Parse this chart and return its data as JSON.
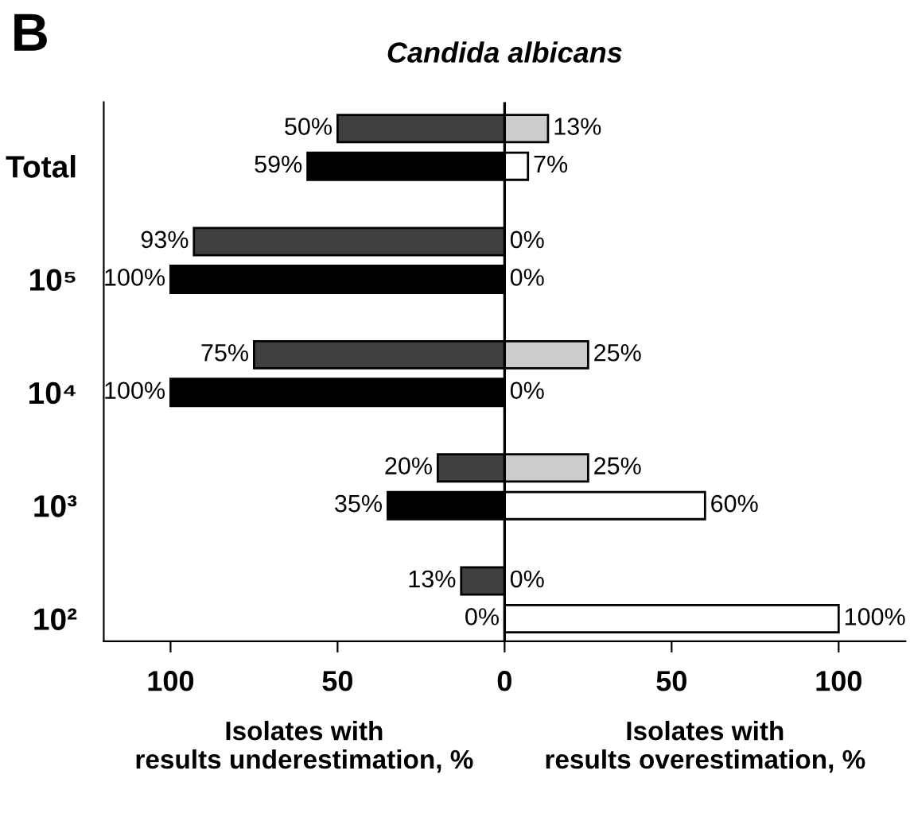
{
  "chart_data": {
    "type": "bar",
    "orientation": "horizontal",
    "title": "Candida albicans",
    "categories": [
      null,
      "Total",
      null,
      null,
      "10⁵",
      null,
      null,
      "10⁴",
      null,
      null,
      "10³",
      null,
      null,
      "10²"
    ],
    "series": [
      {
        "values": [
          50,
          59,
          null,
          93,
          100,
          null,
          75,
          100,
          null,
          20,
          35,
          null,
          13,
          0
        ],
        "base": [
          -50,
          -59,
          null,
          -93,
          -100,
          null,
          -75,
          -100,
          null,
          -20,
          -35,
          null,
          -13,
          null
        ],
        "colors": [
          "#404040",
          "#000000",
          "#404040",
          "#404040",
          "#000000",
          "#404040",
          "#404040",
          "#000000",
          "#404040",
          "#404040",
          "#000000",
          "#404040",
          "#404040",
          "#000000"
        ],
        "value_labels": [
          "50%",
          "59%",
          null,
          "93%",
          "100%",
          null,
          "75%",
          "100%",
          null,
          "20%",
          "35%",
          null,
          "13%",
          "0%"
        ]
      },
      {
        "values": [
          13,
          7,
          null,
          0,
          0,
          null,
          25,
          0,
          null,
          25,
          60,
          null,
          0,
          100
        ],
        "colors": [
          "#cccccc",
          "#ffffff",
          "#cccccc",
          "#cccccc",
          "#ffffff",
          "#cccccc",
          "#cccccc",
          "#ffffff",
          "#cccccc",
          "#cccccc",
          "#ffffff",
          "#cccccc",
          "#cccccc",
          "#ffffff"
        ],
        "value_labels": [
          "13%",
          "7%",
          null,
          "0%",
          "0%",
          null,
          "25%",
          "0%",
          null,
          "25%",
          "60%",
          null,
          "0%",
          "100%"
        ]
      }
    ],
    "xlim": [
      -120,
      120
    ],
    "xticks": [
      {
        "value": -100,
        "label": "100"
      },
      {
        "value": -50,
        "label": "50"
      },
      0,
      50,
      100
    ],
    "ref_lines": [
      {
        "axis": "x",
        "value": 0,
        "color": "#000000"
      }
    ],
    "annotations": [
      "B",
      "Isolates with\nresults underestimation, %",
      "Isolates with\nresults overestimation, %"
    ],
    "grid": false,
    "legend": false
  }
}
